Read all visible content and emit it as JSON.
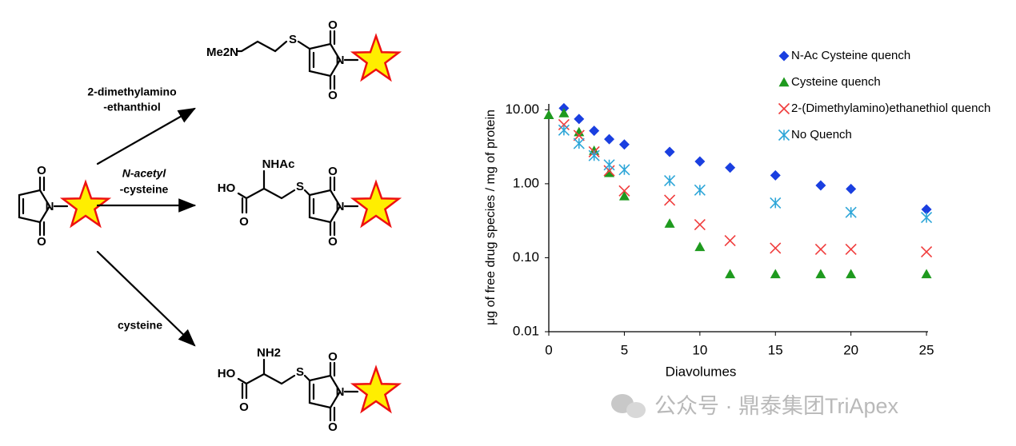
{
  "scheme": {
    "reagents": [
      [
        "2-dimethylamino",
        "-ethanthiol"
      ],
      [
        "N-acetyl",
        "-cysteine"
      ],
      [
        "cysteine"
      ]
    ],
    "start": {
      "atoms": [
        "O",
        "N",
        "O"
      ]
    },
    "products": [
      {
        "atoms": [
          "Me2N",
          "S",
          "O",
          "N",
          "O"
        ]
      },
      {
        "atoms": [
          "NHAc",
          "HO",
          "O",
          "S",
          "O",
          "N",
          "O"
        ]
      },
      {
        "atoms": [
          "NH2",
          "HO",
          "O",
          "S",
          "O",
          "N",
          "O"
        ]
      }
    ]
  },
  "watermark": "公众号 · 鼎泰集团TriApex",
  "chart_data": {
    "type": "scatter",
    "x_label": "Diavolumes",
    "y_label": "μg of free drug species / mg of protein",
    "y_log": true,
    "x": [
      0,
      1,
      2,
      3,
      4,
      5,
      8,
      10,
      12,
      15,
      18,
      20,
      25
    ],
    "xlim": [
      0,
      25.1
    ],
    "xticks": [
      0,
      5,
      10,
      15,
      20,
      25
    ],
    "ylim": [
      0.01,
      12
    ],
    "yticks": [
      {
        "value": 10,
        "label": "10.00"
      },
      {
        "value": 1,
        "label": "1.00"
      },
      {
        "value": 0.1,
        "label": "0.10"
      },
      {
        "value": 0.01,
        "label": "0.01"
      }
    ],
    "legend": "upper right",
    "series": [
      {
        "name": "N-Ac Cysteine quench",
        "color": "#1a3fe0",
        "marker": "diamond",
        "values": [
          null,
          10.5,
          7.5,
          5.2,
          4.0,
          3.4,
          2.7,
          2.0,
          1.65,
          1.3,
          0.95,
          0.85,
          0.45
        ]
      },
      {
        "name": "Cysteine quench",
        "color": "#1e9a1e",
        "marker": "triangle",
        "values": [
          8.5,
          9.0,
          5.0,
          2.8,
          1.4,
          0.68,
          0.29,
          0.14,
          0.06,
          0.06,
          0.06,
          0.06,
          0.06
        ]
      },
      {
        "name": "2-(Dimethylamino)ethanethiol quench",
        "color": "#f03c3c",
        "marker": "x",
        "values": [
          null,
          6.3,
          4.5,
          2.7,
          1.5,
          0.8,
          0.6,
          0.28,
          0.17,
          0.135,
          0.13,
          0.13,
          0.12
        ]
      },
      {
        "name": "No Quench",
        "color": "#2ea6d8",
        "marker": "asterisk",
        "values": [
          null,
          5.3,
          3.5,
          2.4,
          1.8,
          1.55,
          1.1,
          0.82,
          null,
          0.55,
          null,
          0.41,
          0.35
        ]
      }
    ]
  }
}
